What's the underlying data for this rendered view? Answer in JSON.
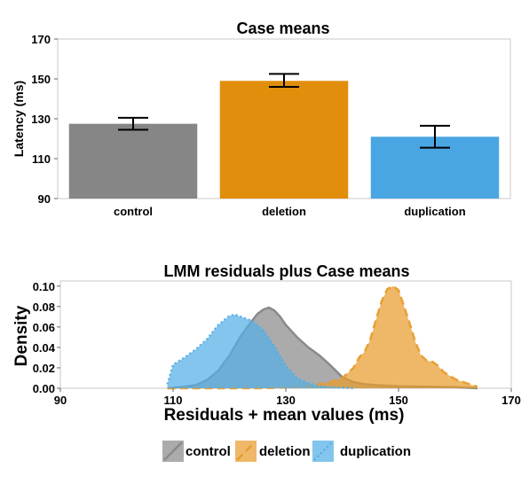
{
  "chart_data": [
    {
      "type": "bar",
      "title": "Case means",
      "xlabel": "",
      "ylabel": "Latency (ms)",
      "ylim": [
        90,
        170
      ],
      "yticks": [
        "90",
        "110",
        "130",
        "150",
        "170"
      ],
      "categories": [
        "control",
        "deletion",
        "duplication"
      ],
      "values": [
        127.5,
        149,
        121
      ],
      "error_bars": [
        {
          "low": 124.5,
          "high": 130.5
        },
        {
          "low": 146,
          "high": 152.5
        },
        {
          "low": 115.5,
          "high": 126.5
        }
      ],
      "colors": [
        "#868686",
        "#e08e0b",
        "#4aa6e3"
      ],
      "grid": false
    },
    {
      "type": "area",
      "title": "LMM residuals plus Case means",
      "xlabel": "Residuals + mean values (ms)",
      "ylabel": "Density",
      "xlim": [
        90,
        170
      ],
      "ylim": [
        0,
        0.105
      ],
      "xticks": [
        "90",
        "110",
        "130",
        "150",
        "170"
      ],
      "yticks": [
        "0.00",
        "0.02",
        "0.04",
        "0.06",
        "0.08",
        "0.10"
      ],
      "grid": false,
      "legend_position": "bottom",
      "series": [
        {
          "name": "control",
          "color": "#8a8a8a",
          "line": "solid",
          "x": [
            109,
            112,
            114,
            116,
            118,
            120,
            122,
            124,
            125,
            126,
            127,
            128,
            129,
            130,
            132,
            134,
            136,
            138,
            140,
            142,
            144,
            146,
            150,
            155,
            160,
            164
          ],
          "y": [
            0.0,
            0.0015,
            0.003,
            0.008,
            0.017,
            0.032,
            0.051,
            0.066,
            0.073,
            0.077,
            0.079,
            0.076,
            0.07,
            0.062,
            0.05,
            0.04,
            0.032,
            0.022,
            0.011,
            0.006,
            0.004,
            0.003,
            0.002,
            0.0015,
            0.001,
            0.0
          ]
        },
        {
          "name": "deletion",
          "color": "#e89c2e",
          "line": "dashed",
          "x": [
            109,
            125,
            132,
            135,
            138,
            140,
            142,
            143,
            144,
            145,
            146,
            147,
            148,
            149,
            150,
            151,
            152,
            153,
            154,
            155,
            156,
            157,
            158,
            160,
            162,
            164
          ],
          "y": [
            0.0,
            0.0,
            0.001,
            0.003,
            0.006,
            0.01,
            0.02,
            0.03,
            0.036,
            0.048,
            0.067,
            0.085,
            0.097,
            0.1,
            0.096,
            0.08,
            0.063,
            0.045,
            0.032,
            0.027,
            0.026,
            0.022,
            0.016,
            0.009,
            0.005,
            0.0015
          ]
        },
        {
          "name": "duplication",
          "color": "#55aee6",
          "line": "dotted",
          "x": [
            109,
            110,
            112,
            114,
            116,
            118,
            120,
            121,
            122,
            123,
            124,
            126,
            128,
            130,
            132,
            134,
            136,
            138,
            140,
            142
          ],
          "y": [
            0.004,
            0.023,
            0.03,
            0.038,
            0.048,
            0.062,
            0.071,
            0.072,
            0.07,
            0.068,
            0.066,
            0.057,
            0.041,
            0.022,
            0.01,
            0.005,
            0.002,
            0.001,
            0.0005,
            0.0
          ]
        }
      ]
    }
  ]
}
